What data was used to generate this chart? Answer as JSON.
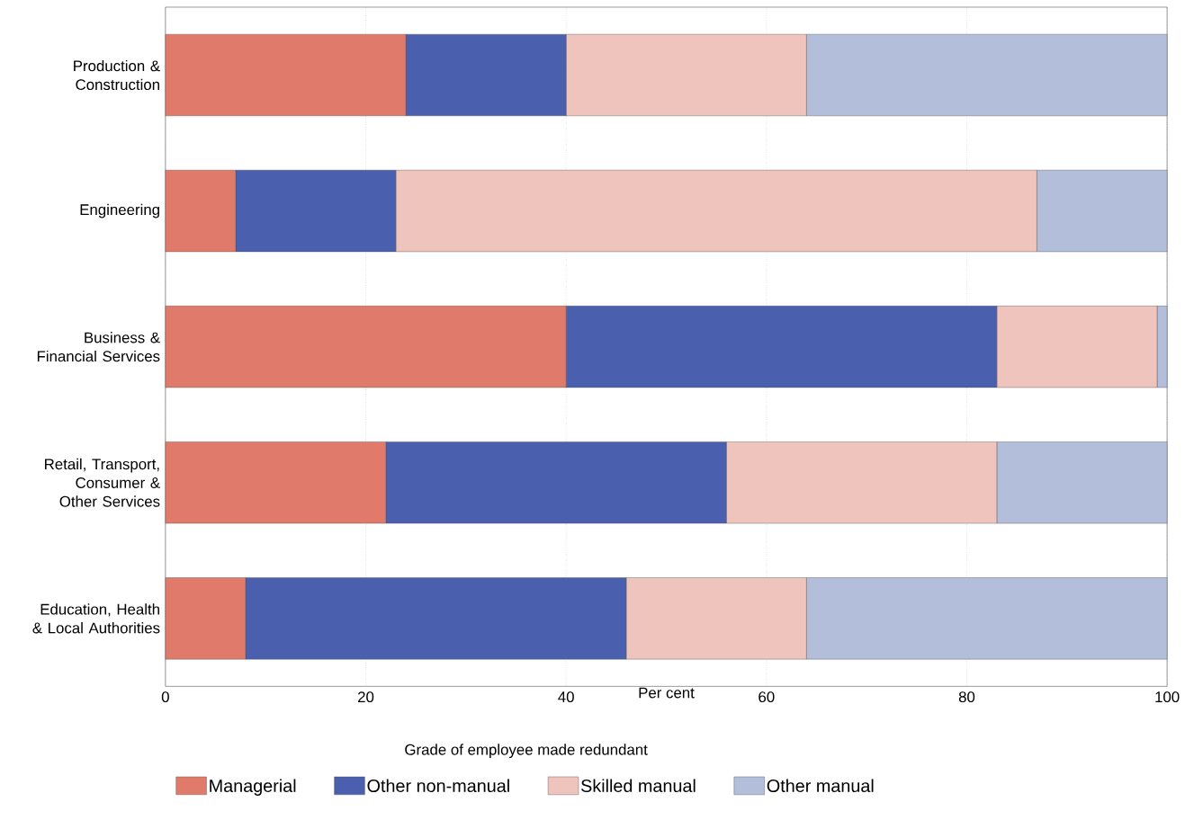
{
  "chart_data": {
    "type": "bar",
    "orientation": "horizontal",
    "stacked": true,
    "categories": [
      "Production & Construction",
      "Engineering",
      "Business & Financial Services",
      "Retail, Transport, Consumer & Other Services",
      "Education, Health & Local Authorities"
    ],
    "series": [
      {
        "name": "Managerial",
        "color": "#e07a6a",
        "values": [
          24,
          7,
          40,
          22,
          8
        ]
      },
      {
        "name": "Other non-manual",
        "color": "#4a5fae",
        "values": [
          16,
          16,
          43,
          34,
          38
        ]
      },
      {
        "name": "Skilled manual",
        "color": "#eec4bc",
        "values": [
          24,
          64,
          16,
          27,
          18
        ]
      },
      {
        "name": "Other manual",
        "color": "#b3bedb",
        "values": [
          36,
          13,
          1,
          17,
          36
        ]
      }
    ],
    "xlabel": "Per cent",
    "legend_title": "Grade of employee made redundant",
    "xlim": [
      0,
      100
    ],
    "xticks": [
      0,
      20,
      40,
      60,
      80,
      100
    ],
    "grid": "x",
    "legend": "bottom"
  }
}
